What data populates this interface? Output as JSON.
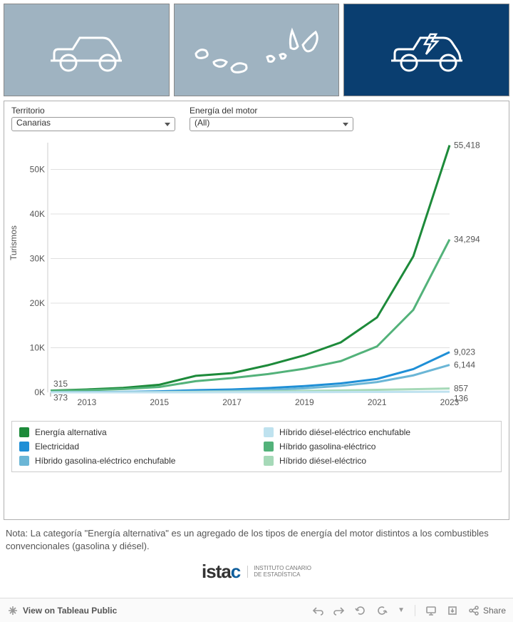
{
  "tabs": [
    {
      "name": "tab-car",
      "bg": "#9fb3c1",
      "active": false
    },
    {
      "name": "tab-islands",
      "bg": "#9fb3c1",
      "active": false
    },
    {
      "name": "tab-ev",
      "bg": "#0a3e70",
      "active": true
    }
  ],
  "filters": {
    "territorio": {
      "label": "Territorio",
      "value": "Canarias"
    },
    "energia": {
      "label": "Energía del motor",
      "value": "(All)"
    }
  },
  "chart": {
    "type": "line",
    "ylabel": "Turismos",
    "xlim": [
      2012,
      2023
    ],
    "ylim": [
      0,
      56000
    ],
    "yticks": [
      0,
      10000,
      20000,
      30000,
      40000,
      50000
    ],
    "ytick_labels": [
      "0K",
      "10K",
      "20K",
      "30K",
      "40K",
      "50K"
    ],
    "xticks": [
      2013,
      2015,
      2017,
      2019,
      2021,
      2023
    ],
    "years": [
      2012,
      2013,
      2014,
      2015,
      2016,
      2017,
      2018,
      2019,
      2020,
      2021,
      2022,
      2023
    ],
    "grid_color": "#e0e0e0",
    "background_color": "#ffffff",
    "line_width": 3,
    "axis_fontsize": 12,
    "label_fontsize": 12,
    "start_labels": [
      {
        "text": "373",
        "y": 373,
        "dy": 14
      },
      {
        "text": "315",
        "y": 315,
        "dy": -6
      }
    ],
    "series": [
      {
        "name": "Energía alternativa",
        "color": "#1d8a3a",
        "values": [
          373,
          650,
          1000,
          1700,
          3700,
          4300,
          6100,
          8300,
          11200,
          16800,
          30500,
          55418
        ],
        "end_label": "55,418"
      },
      {
        "name": "Híbrido gasolina-eléctrico",
        "color": "#53b27a",
        "values": [
          315,
          480,
          730,
          1200,
          2500,
          3200,
          4100,
          5300,
          7000,
          10300,
          18500,
          34294
        ],
        "end_label": "34,294"
      },
      {
        "name": "Electricidad",
        "color": "#1f8fd6",
        "values": [
          30,
          55,
          100,
          220,
          480,
          650,
          960,
          1400,
          2000,
          3000,
          5200,
          9023
        ],
        "end_label": "9,023"
      },
      {
        "name": "Híbrido gasolina-eléctrico enchufable",
        "color": "#6bb6d6",
        "values": [
          5,
          10,
          25,
          70,
          180,
          300,
          520,
          900,
          1450,
          2300,
          3800,
          6144
        ],
        "end_label": "6,144"
      },
      {
        "name": "Híbrido diésel-eléctrico",
        "color": "#a6d9b8",
        "values": [
          12,
          20,
          30,
          50,
          90,
          150,
          220,
          320,
          430,
          560,
          700,
          857
        ],
        "end_label": "857"
      },
      {
        "name": "Híbrido diésel-eléctrico enchufable",
        "color": "#bfe2ef",
        "values": [
          0,
          0,
          1,
          3,
          8,
          15,
          25,
          40,
          58,
          80,
          105,
          136
        ],
        "end_label": "136"
      }
    ],
    "legend_order": [
      "Energía alternativa",
      "Híbrido diésel-eléctrico enchufable",
      "Electricidad",
      "Híbrido gasolina-eléctrico",
      "Híbrido gasolina-eléctrico enchufable",
      "Híbrido diésel-eléctrico"
    ]
  },
  "note": "Nota: La categoría \"Energía alternativa\" es un agregado de los tipos de energía del motor distintos a los combustibles convencionales (gasolina y diésel).",
  "logo": {
    "word_parts": [
      "ista",
      "c"
    ],
    "tag1": "INSTITUTO CANARIO",
    "tag2": "DE ESTADÍSTICA"
  },
  "toolbar": {
    "view": "View on Tableau Public",
    "share": "Share"
  }
}
